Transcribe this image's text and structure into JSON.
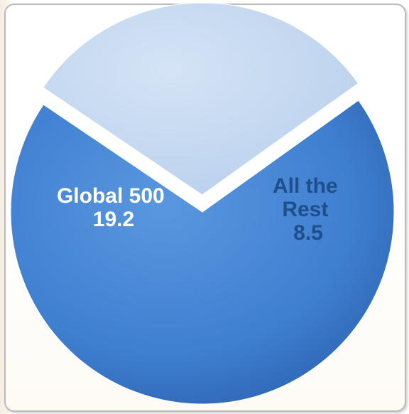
{
  "chart_data": {
    "type": "pie",
    "title": "",
    "slices": [
      {
        "label": "Global 500",
        "value": 19.2,
        "value_text": "19.2",
        "color": "#3f7fd0",
        "text_color": "#ffffff",
        "exploded": false
      },
      {
        "label_lines": [
          "All the",
          "Rest"
        ],
        "value": 8.5,
        "value_text": "8.5",
        "color": "#c4d8f0",
        "text_color": "#1f4f8a",
        "exploded": true
      }
    ],
    "legend": "none"
  }
}
